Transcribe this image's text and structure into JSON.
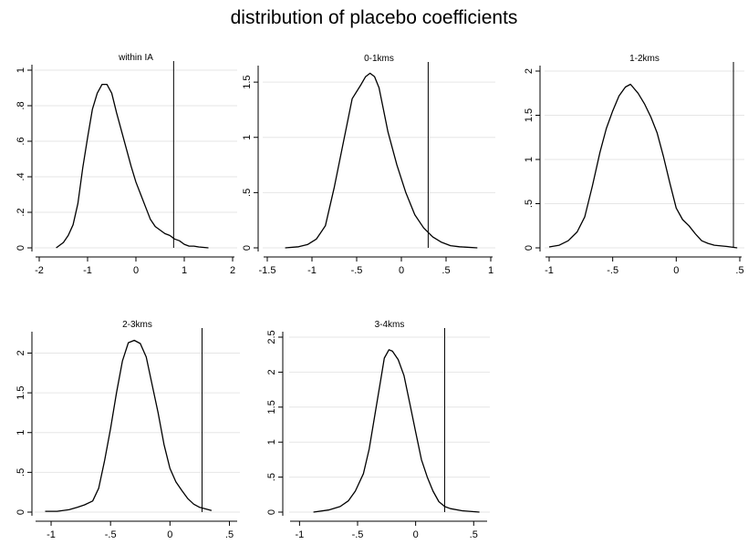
{
  "title": "distribution of placebo coefficients",
  "chart_data": [
    {
      "type": "line",
      "title": "within IA",
      "xlim": [
        -2,
        2
      ],
      "ylim": [
        0,
        1
      ],
      "xticks": [
        -2,
        -1,
        0,
        1,
        2
      ],
      "xtick_labels": [
        "-2",
        "-1",
        "0",
        "1",
        "2"
      ],
      "yticks": [
        0,
        0.2,
        0.4,
        0.6,
        0.8,
        1
      ],
      "ytick_labels": [
        "0",
        ".2",
        ".4",
        ".6",
        ".8",
        "1"
      ],
      "grid": true,
      "vline": 0.78,
      "x": [
        -1.65,
        -1.5,
        -1.4,
        -1.3,
        -1.2,
        -1.1,
        -1.0,
        -0.9,
        -0.8,
        -0.7,
        -0.6,
        -0.5,
        -0.4,
        -0.3,
        -0.2,
        -0.1,
        0.0,
        0.1,
        0.2,
        0.3,
        0.4,
        0.5,
        0.6,
        0.7,
        0.8,
        0.9,
        1.0,
        1.1,
        1.2,
        1.3,
        1.5
      ],
      "y": [
        0.0,
        0.03,
        0.07,
        0.13,
        0.25,
        0.45,
        0.62,
        0.78,
        0.87,
        0.92,
        0.92,
        0.87,
        0.76,
        0.66,
        0.56,
        0.46,
        0.37,
        0.3,
        0.23,
        0.16,
        0.12,
        0.1,
        0.08,
        0.07,
        0.05,
        0.04,
        0.02,
        0.01,
        0.01,
        0.005,
        0.0
      ]
    },
    {
      "type": "line",
      "title": "0-1kms",
      "xlim": [
        -1.5,
        1
      ],
      "ylim": [
        0,
        1.6
      ],
      "xticks": [
        -1.5,
        -1,
        -0.5,
        0,
        0.5,
        1
      ],
      "xtick_labels": [
        "-1.5",
        "-1",
        "-.5",
        "0",
        ".5",
        "1"
      ],
      "yticks": [
        0,
        0.5,
        1,
        1.5
      ],
      "ytick_labels": [
        "0",
        ".5",
        "1",
        "1.5"
      ],
      "grid": true,
      "vline": 0.3,
      "x": [
        -1.3,
        -1.15,
        -1.05,
        -0.95,
        -0.85,
        -0.75,
        -0.65,
        -0.55,
        -0.45,
        -0.4,
        -0.35,
        -0.3,
        -0.25,
        -0.2,
        -0.15,
        -0.05,
        0.05,
        0.15,
        0.25,
        0.35,
        0.45,
        0.55,
        0.65,
        0.85
      ],
      "y": [
        0.0,
        0.01,
        0.03,
        0.08,
        0.2,
        0.55,
        0.95,
        1.35,
        1.48,
        1.55,
        1.58,
        1.55,
        1.45,
        1.25,
        1.05,
        0.75,
        0.5,
        0.3,
        0.18,
        0.1,
        0.05,
        0.02,
        0.01,
        0.0
      ]
    },
    {
      "type": "line",
      "title": "1-2kms",
      "xlim": [
        -1,
        0.5
      ],
      "ylim": [
        0,
        2
      ],
      "xticks": [
        -1,
        -0.5,
        0,
        0.5
      ],
      "xtick_labels": [
        "-1",
        "-.5",
        "0",
        ".5"
      ],
      "yticks": [
        0,
        0.5,
        1,
        1.5,
        2
      ],
      "ytick_labels": [
        "0",
        ".5",
        "1",
        "1.5",
        "2"
      ],
      "grid": true,
      "vline": 0.45,
      "x": [
        -1.0,
        -0.92,
        -0.85,
        -0.78,
        -0.72,
        -0.66,
        -0.6,
        -0.55,
        -0.5,
        -0.45,
        -0.4,
        -0.36,
        -0.3,
        -0.25,
        -0.2,
        -0.15,
        -0.1,
        -0.05,
        0.0,
        0.05,
        0.1,
        0.15,
        0.2,
        0.25,
        0.3,
        0.4,
        0.48
      ],
      "y": [
        0.01,
        0.03,
        0.08,
        0.18,
        0.35,
        0.7,
        1.08,
        1.35,
        1.55,
        1.72,
        1.82,
        1.85,
        1.75,
        1.63,
        1.48,
        1.3,
        1.03,
        0.73,
        0.45,
        0.32,
        0.25,
        0.16,
        0.08,
        0.05,
        0.03,
        0.015,
        0.0
      ]
    },
    {
      "type": "line",
      "title": "2-3kms",
      "xlim": [
        -1.1,
        0.55
      ],
      "ylim": [
        0,
        2.2
      ],
      "xticks": [
        -1,
        -0.5,
        0,
        0.5
      ],
      "xtick_labels": [
        "-1",
        "-.5",
        "0",
        ".5"
      ],
      "yticks": [
        0,
        0.5,
        1,
        1.5,
        2
      ],
      "ytick_labels": [
        "0",
        ".5",
        "1",
        "1.5",
        "2"
      ],
      "grid": true,
      "vline": 0.27,
      "x": [
        -1.05,
        -0.95,
        -0.85,
        -0.78,
        -0.72,
        -0.65,
        -0.6,
        -0.55,
        -0.5,
        -0.45,
        -0.4,
        -0.35,
        -0.3,
        -0.25,
        -0.2,
        -0.15,
        -0.1,
        -0.05,
        0.0,
        0.05,
        0.1,
        0.15,
        0.2,
        0.25,
        0.35
      ],
      "y": [
        0.01,
        0.01,
        0.03,
        0.06,
        0.09,
        0.14,
        0.3,
        0.65,
        1.05,
        1.5,
        1.9,
        2.13,
        2.16,
        2.12,
        1.95,
        1.6,
        1.25,
        0.85,
        0.55,
        0.38,
        0.27,
        0.17,
        0.1,
        0.06,
        0.02
      ]
    },
    {
      "type": "line",
      "title": "3-4kms",
      "xlim": [
        -1.05,
        0.6
      ],
      "ylim": [
        0,
        2.5
      ],
      "xticks": [
        -1,
        -0.5,
        0,
        0.5
      ],
      "xtick_labels": [
        "-1",
        "-.5",
        "0",
        ".5"
      ],
      "yticks": [
        0,
        0.5,
        1,
        1.5,
        2,
        2.5
      ],
      "ytick_labels": [
        "0",
        ".5",
        "1",
        "1.5",
        "2",
        "2.5"
      ],
      "grid": true,
      "vline": 0.25,
      "x": [
        -0.88,
        -0.75,
        -0.65,
        -0.58,
        -0.52,
        -0.45,
        -0.4,
        -0.35,
        -0.3,
        -0.27,
        -0.23,
        -0.2,
        -0.15,
        -0.1,
        -0.05,
        0.0,
        0.05,
        0.1,
        0.15,
        0.2,
        0.25,
        0.3,
        0.4,
        0.55
      ],
      "y": [
        0.0,
        0.03,
        0.08,
        0.16,
        0.3,
        0.55,
        0.9,
        1.4,
        1.9,
        2.2,
        2.32,
        2.3,
        2.18,
        1.95,
        1.55,
        1.15,
        0.75,
        0.5,
        0.3,
        0.15,
        0.08,
        0.05,
        0.02,
        0.0
      ]
    }
  ]
}
